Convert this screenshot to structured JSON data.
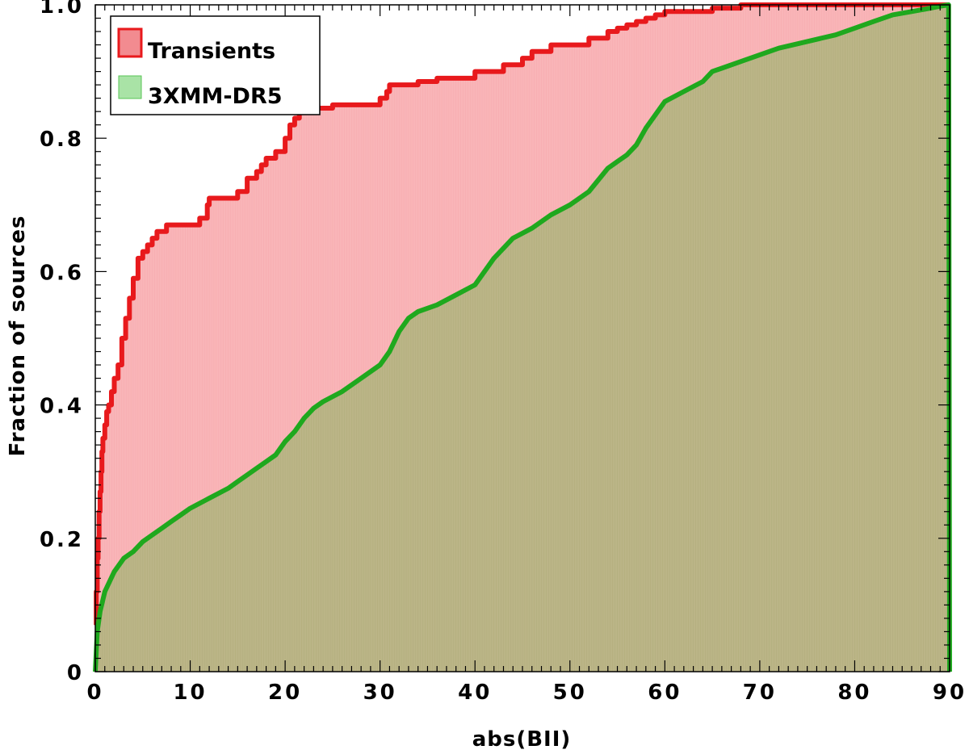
{
  "chart_data": {
    "type": "area",
    "xlabel": "abs(BII)",
    "ylabel": "Fraction of sources",
    "xlim": [
      0,
      90
    ],
    "ylim": [
      0,
      1.0
    ],
    "x_ticks": [
      "0",
      "10",
      "20",
      "30",
      "40",
      "50",
      "60",
      "70",
      "80",
      "90"
    ],
    "y_ticks": [
      "0",
      "0.2",
      "0.4",
      "0.6",
      "0.8",
      "1.0"
    ],
    "grid": false,
    "legend_position": "top-left",
    "series": [
      {
        "name": "Transients",
        "color": "#e8191c",
        "fill": "#f9b5b8",
        "step": true,
        "x": [
          0,
          0.1,
          0.2,
          0.3,
          0.4,
          0.5,
          0.6,
          0.7,
          0.8,
          1,
          1.2,
          1.4,
          1.7,
          2.0,
          2.4,
          2.8,
          3.2,
          3.6,
          4.0,
          4.5,
          5.0,
          5.5,
          6.0,
          6.5,
          7.0,
          7.5,
          8.0,
          9.0,
          10.0,
          11.0,
          11.8,
          12.0,
          12.5,
          13.0,
          15.0,
          16.0,
          17.0,
          17.5,
          18.0,
          19.0,
          20.0,
          20.5,
          21.0,
          21.5,
          22.0,
          23.0,
          25.0,
          27.0,
          30.0,
          30.7,
          31.0,
          32.0,
          34.0,
          36.0,
          38.0,
          40.0,
          41.0,
          43.0,
          45.0,
          46.0,
          47.0,
          48.0,
          50.0,
          52.0,
          53.0,
          54.0,
          55.0,
          56.0,
          57.0,
          58.0,
          59.0,
          60.0,
          62.0,
          65.0,
          67.0,
          68.0,
          69.0,
          75.0,
          80.0,
          85.0,
          88.0,
          89.0,
          90.0
        ],
        "y": [
          0.07,
          0.12,
          0.17,
          0.2,
          0.24,
          0.27,
          0.3,
          0.33,
          0.35,
          0.37,
          0.39,
          0.4,
          0.42,
          0.44,
          0.46,
          0.5,
          0.53,
          0.56,
          0.59,
          0.62,
          0.63,
          0.64,
          0.65,
          0.66,
          0.66,
          0.67,
          0.67,
          0.67,
          0.67,
          0.68,
          0.7,
          0.71,
          0.71,
          0.71,
          0.72,
          0.74,
          0.75,
          0.76,
          0.77,
          0.78,
          0.8,
          0.82,
          0.83,
          0.84,
          0.84,
          0.845,
          0.85,
          0.85,
          0.86,
          0.87,
          0.88,
          0.88,
          0.885,
          0.89,
          0.89,
          0.9,
          0.9,
          0.91,
          0.92,
          0.93,
          0.93,
          0.94,
          0.94,
          0.95,
          0.95,
          0.96,
          0.965,
          0.97,
          0.975,
          0.98,
          0.985,
          0.99,
          0.99,
          0.995,
          0.995,
          1.0,
          1.0,
          1.0,
          1.0,
          1.0,
          1.0,
          1.0,
          1.0
        ]
      },
      {
        "name": "3XMM-DR5",
        "color": "#1fa81e",
        "fill": "#b6b583",
        "step": false,
        "x": [
          0,
          0.2,
          0.5,
          1,
          2,
          3,
          4,
          5,
          6,
          7,
          8,
          9,
          10,
          12,
          14,
          15,
          16,
          17,
          18,
          19,
          20,
          21,
          22,
          23,
          24,
          26,
          28,
          30,
          31,
          32,
          33,
          34,
          36,
          38,
          40,
          42,
          44,
          46,
          48,
          50,
          52,
          54,
          55,
          56,
          57,
          58,
          59,
          60,
          62,
          64,
          65,
          66,
          68,
          70,
          72,
          75,
          78,
          80,
          82,
          84,
          86,
          88,
          89,
          89.9,
          90
        ],
        "y": [
          0,
          0.06,
          0.09,
          0.12,
          0.15,
          0.17,
          0.18,
          0.195,
          0.205,
          0.215,
          0.225,
          0.235,
          0.245,
          0.26,
          0.275,
          0.285,
          0.295,
          0.305,
          0.315,
          0.325,
          0.345,
          0.36,
          0.38,
          0.395,
          0.405,
          0.42,
          0.44,
          0.46,
          0.48,
          0.51,
          0.53,
          0.54,
          0.55,
          0.565,
          0.58,
          0.62,
          0.65,
          0.665,
          0.685,
          0.7,
          0.72,
          0.755,
          0.765,
          0.775,
          0.79,
          0.815,
          0.835,
          0.855,
          0.87,
          0.885,
          0.9,
          0.905,
          0.915,
          0.925,
          0.935,
          0.945,
          0.955,
          0.965,
          0.975,
          0.985,
          0.99,
          0.995,
          0.998,
          1.0,
          0.0
        ]
      }
    ]
  }
}
